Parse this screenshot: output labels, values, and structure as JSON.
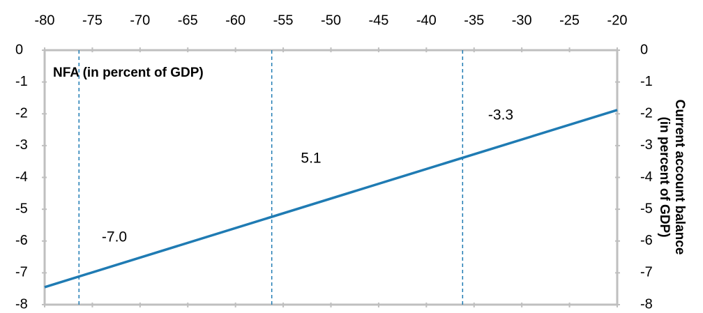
{
  "chart_data": {
    "type": "line",
    "title": "NFA (in percent of GDP)",
    "y2label": [
      "Current account balance",
      "(in percent of GDP)"
    ],
    "x": [
      -80,
      -45,
      -20
    ],
    "series": [
      {
        "color": "#1f7bb3",
        "values": [
          -7.45,
          -4.2,
          -1.88
        ]
      }
    ],
    "xlim": [
      -80,
      -20
    ],
    "xticks": [
      -80,
      -75,
      -70,
      -65,
      -60,
      -55,
      -50,
      -45,
      -40,
      -35,
      -30,
      -25,
      -20
    ],
    "ylim": [
      -8,
      0
    ],
    "yticks": [
      0,
      -1,
      -2,
      -3,
      -4,
      -5,
      -6,
      -7,
      -8
    ],
    "y2lim": [
      -8,
      0
    ],
    "y2ticks": [
      0,
      -1,
      -2,
      -3,
      -4,
      -5,
      -6,
      -7,
      -8
    ],
    "vlines": [
      -76.4,
      -56.2,
      -36.2
    ],
    "annotations": [
      "-7.0",
      "5.1",
      "-3.3"
    ]
  }
}
